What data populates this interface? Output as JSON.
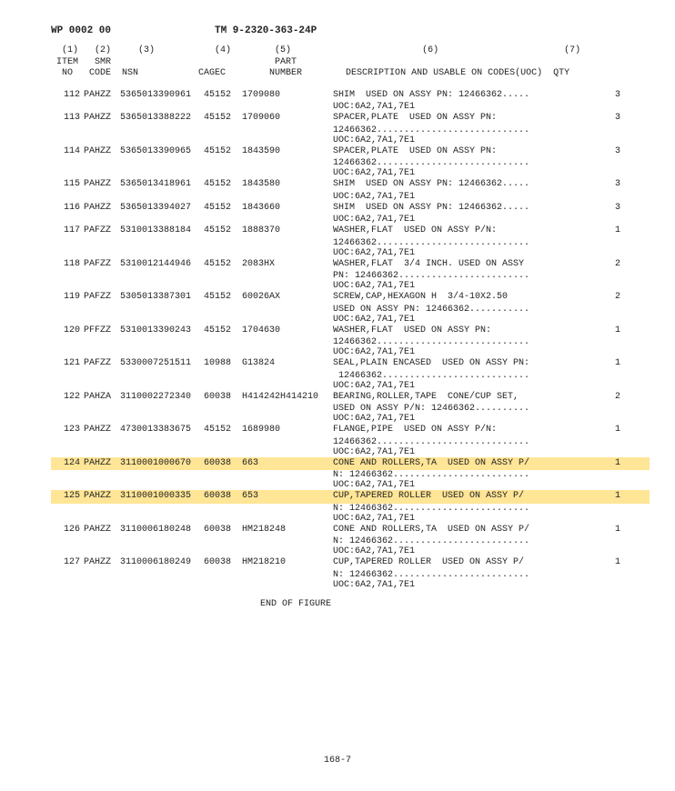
{
  "header": {
    "wp": "WP 0002 00",
    "tm": "TM 9-2320-363-24P"
  },
  "column_header_lines": [
    "  (1)   (2)     (3)           (4)        (5)                        (6)                       (7)",
    " ITEM   SMR                              PART",
    "  NO   CODE  NSN           CAGEC        NUMBER        DESCRIPTION AND USABLE ON CODES(UOC)  QTY"
  ],
  "rows": [
    {
      "no": "112",
      "smr": "PAHZZ",
      "nsn": "5365013390961",
      "cagec": "45152",
      "part": "1709080",
      "desc": [
        "SHIM  USED ON ASSY PN: 12466362.....",
        "UOC:6A2,7A1,7E1"
      ],
      "qty": "3",
      "hl": false
    },
    {
      "no": "113",
      "smr": "PAHZZ",
      "nsn": "5365013388222",
      "cagec": "45152",
      "part": "1709060",
      "desc": [
        "SPACER,PLATE  USED ON ASSY PN:",
        "12466362............................",
        "UOC:6A2,7A1,7E1"
      ],
      "qty": "3",
      "hl": false
    },
    {
      "no": "114",
      "smr": "PAHZZ",
      "nsn": "5365013390965",
      "cagec": "45152",
      "part": "1843590",
      "desc": [
        "SPACER,PLATE  USED ON ASSY PN:",
        "12466362............................",
        "UOC:6A2,7A1,7E1"
      ],
      "qty": "3",
      "hl": false
    },
    {
      "no": "115",
      "smr": "PAHZZ",
      "nsn": "5365013418961",
      "cagec": "45152",
      "part": "1843580",
      "desc": [
        "SHIM  USED ON ASSY PN: 12466362.....",
        "UOC:6A2,7A1,7E1"
      ],
      "qty": "3",
      "hl": false
    },
    {
      "no": "116",
      "smr": "PAHZZ",
      "nsn": "5365013394027",
      "cagec": "45152",
      "part": "1843660",
      "desc": [
        "SHIM  USED ON ASSY PN: 12466362.....",
        "UOC:6A2,7A1,7E1"
      ],
      "qty": "3",
      "hl": false
    },
    {
      "no": "117",
      "smr": "PAFZZ",
      "nsn": "5310013388184",
      "cagec": "45152",
      "part": "1888370",
      "desc": [
        "WASHER,FLAT  USED ON ASSY P/N:",
        "12466362............................",
        "UOC:6A2,7A1,7E1"
      ],
      "qty": "1",
      "hl": false
    },
    {
      "no": "118",
      "smr": "PAFZZ",
      "nsn": "5310012144946",
      "cagec": "45152",
      "part": "2083HX",
      "desc": [
        "WASHER,FLAT  3/4 INCH. USED ON ASSY",
        "PN: 12466362........................",
        "UOC:6A2,7A1,7E1"
      ],
      "qty": "2",
      "hl": false
    },
    {
      "no": "119",
      "smr": "PAFZZ",
      "nsn": "5305013387301",
      "cagec": "45152",
      "part": "60026AX",
      "desc": [
        "SCREW,CAP,HEXAGON H  3/4-10X2.50",
        "USED ON ASSY PN: 12466362...........",
        "UOC:6A2,7A1,7E1"
      ],
      "qty": "2",
      "hl": false
    },
    {
      "no": "120",
      "smr": "PFFZZ",
      "nsn": "5310013390243",
      "cagec": "45152",
      "part": "1704630",
      "desc": [
        "WASHER,FLAT  USED ON ASSY PN:",
        "12466362............................",
        "UOC:6A2,7A1,7E1"
      ],
      "qty": "1",
      "hl": false
    },
    {
      "no": "121",
      "smr": "PAFZZ",
      "nsn": "5330007251511",
      "cagec": "10988",
      "part": "G13824",
      "desc": [
        "SEAL,PLAIN ENCASED  USED ON ASSY PN:",
        " 12466362...........................",
        "UOC:6A2,7A1,7E1"
      ],
      "qty": "1",
      "hl": false
    },
    {
      "no": "122",
      "smr": "PAHZA",
      "nsn": "3110002272340",
      "cagec": "60038",
      "part": "H414242H414210",
      "desc": [
        "BEARING,ROLLER,TAPE  CONE/CUP SET,",
        "USED ON ASSY P/N: 12466362..........",
        "UOC:6A2,7A1,7E1"
      ],
      "qty": "2",
      "hl": false
    },
    {
      "no": "123",
      "smr": "PAHZZ",
      "nsn": "4730013383675",
      "cagec": "45152",
      "part": "1689980",
      "desc": [
        "FLANGE,PIPE  USED ON ASSY P/N:",
        "12466362............................",
        "UOC:6A2,7A1,7E1"
      ],
      "qty": "1",
      "hl": false
    },
    {
      "no": "124",
      "smr": "PAHZZ",
      "nsn": "3110001000670",
      "cagec": "60038",
      "part": "663",
      "desc": [
        "CONE AND ROLLERS,TA  USED ON ASSY P/",
        "N: 12466362.........................",
        "UOC:6A2,7A1,7E1"
      ],
      "qty": "1",
      "hl": true
    },
    {
      "no": "125",
      "smr": "PAHZZ",
      "nsn": "3110001000335",
      "cagec": "60038",
      "part": "653",
      "desc": [
        "CUP,TAPERED ROLLER  USED ON ASSY P/",
        "N: 12466362.........................",
        "UOC:6A2,7A1,7E1"
      ],
      "qty": "1",
      "hl": true
    },
    {
      "no": "126",
      "smr": "PAHZZ",
      "nsn": "3110006180248",
      "cagec": "60038",
      "part": "HM218248",
      "desc": [
        "CONE AND ROLLERS,TA  USED ON ASSY P/",
        "N: 12466362.........................",
        "UOC:6A2,7A1,7E1"
      ],
      "qty": "1",
      "hl": false
    },
    {
      "no": "127",
      "smr": "PAHZZ",
      "nsn": "3110006180249",
      "cagec": "60038",
      "part": "HM218210",
      "desc": [
        "CUP,TAPERED ROLLER  USED ON ASSY P/",
        "N: 12466362.........................",
        "UOC:6A2,7A1,7E1"
      ],
      "qty": "1",
      "hl": false
    }
  ],
  "end_of_figure": "END OF FIGURE",
  "page_number": "168-7",
  "highlight_color": "#ffe596"
}
